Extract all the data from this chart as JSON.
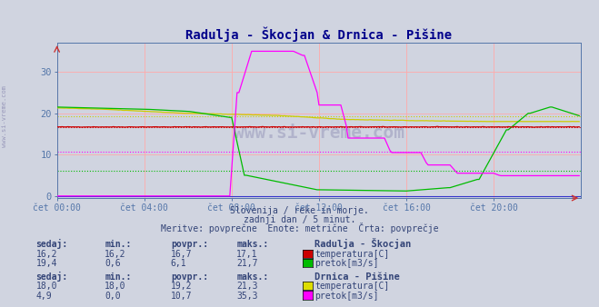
{
  "title": "Radulja - Škocjan & Drnica - Pišine",
  "title_color": "#00008B",
  "bg_color": "#d0d4e0",
  "plot_bg_color": "#d0d4e0",
  "xlabel_ticks": [
    "čet 00:00",
    "čet 04:00",
    "čet 08:00",
    "čet 12:00",
    "čet 16:00",
    "čet 20:00"
  ],
  "xlim": [
    0,
    288
  ],
  "ylim": [
    -0.5,
    37
  ],
  "yticks": [
    0,
    10,
    20,
    30
  ],
  "subtitle_lines": [
    "Slovenija / reke in morje.",
    "zadnji dan / 5 minut.",
    "Meritve: povprečne  Enote: metrične  Črta: povprečje"
  ],
  "watermark": "www.si-vreme.com",
  "station1_name": "Radulja - Škocjan",
  "station2_name": "Drnica - Pišine",
  "legend_labels": [
    "temperatura[C]",
    "pretok[m3/s]",
    "temperatura[C]",
    "pretok[m3/s]"
  ],
  "legend_colors": [
    "#cc0000",
    "#00bb00",
    "#dddd00",
    "#ff00ff"
  ],
  "s1_temp_avg": 16.7,
  "s1_flow_avg": 6.1,
  "s2_temp_avg": 19.2,
  "s2_flow_avg": 10.7,
  "s1_temp": {
    "sedaj": "16,2",
    "min": "16,2",
    "povpr": "16,7",
    "maks": "17,1"
  },
  "s1_flow": {
    "sedaj": "19,4",
    "min": "0,6",
    "povpr": "6,1",
    "maks": "21,7"
  },
  "s2_temp": {
    "sedaj": "18,0",
    "min": "18,0",
    "povpr": "19,2",
    "maks": "21,3"
  },
  "s2_flow": {
    "sedaj": "4,9",
    "min": "0,0",
    "povpr": "10,7",
    "maks": "35,3"
  },
  "num_points": 288,
  "tick_positions": [
    0,
    48,
    96,
    144,
    192,
    240
  ],
  "watermark_color": "#9999bb",
  "axis_color": "#5577aa",
  "text_color": "#334477"
}
